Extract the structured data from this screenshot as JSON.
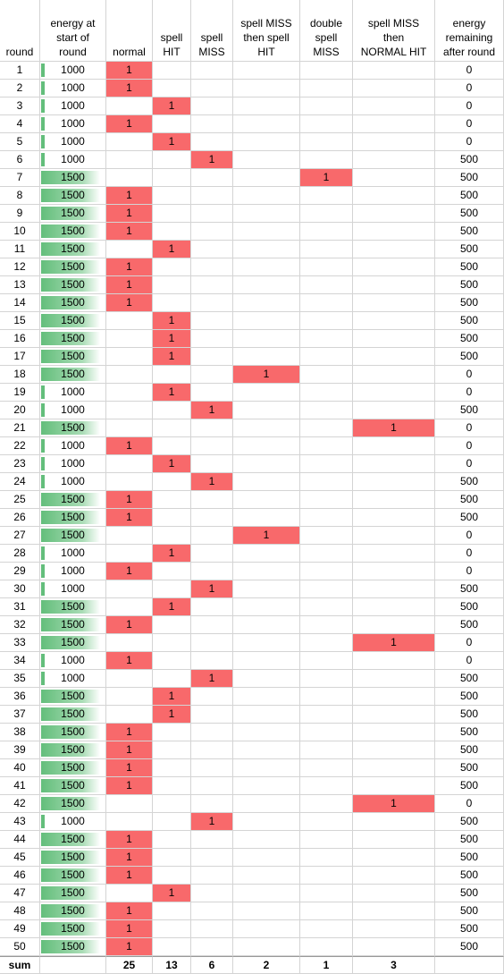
{
  "headers": [
    [
      "round"
    ],
    [
      "energy at",
      "start of",
      "round"
    ],
    [
      "normal"
    ],
    [
      "spell",
      "HIT"
    ],
    [
      "spell",
      "MISS"
    ],
    [
      "spell MISS",
      "then spell",
      "HIT"
    ],
    [
      "double",
      "spell",
      "MISS"
    ],
    [
      "spell MISS",
      "then",
      "NORMAL HIT"
    ],
    [
      "energy",
      "remaining",
      "after round"
    ]
  ],
  "rows": [
    {
      "round": "1",
      "energy": "1000",
      "type": "normal",
      "remaining": "0"
    },
    {
      "round": "2",
      "energy": "1000",
      "type": "normal",
      "remaining": "0"
    },
    {
      "round": "3",
      "energy": "1000",
      "type": "spell_hit",
      "remaining": "0"
    },
    {
      "round": "4",
      "energy": "1000",
      "type": "normal",
      "remaining": "0"
    },
    {
      "round": "5",
      "energy": "1000",
      "type": "spell_hit",
      "remaining": "0"
    },
    {
      "round": "6",
      "energy": "1000",
      "type": "spell_miss",
      "remaining": "500"
    },
    {
      "round": "7",
      "energy": "1500",
      "type": "double_miss",
      "remaining": "500"
    },
    {
      "round": "8",
      "energy": "1500",
      "type": "normal",
      "remaining": "500"
    },
    {
      "round": "9",
      "energy": "1500",
      "type": "normal",
      "remaining": "500"
    },
    {
      "round": "10",
      "energy": "1500",
      "type": "normal",
      "remaining": "500"
    },
    {
      "round": "11",
      "energy": "1500",
      "type": "spell_hit",
      "remaining": "500"
    },
    {
      "round": "12",
      "energy": "1500",
      "type": "normal",
      "remaining": "500"
    },
    {
      "round": "13",
      "energy": "1500",
      "type": "normal",
      "remaining": "500"
    },
    {
      "round": "14",
      "energy": "1500",
      "type": "normal",
      "remaining": "500"
    },
    {
      "round": "15",
      "energy": "1500",
      "type": "spell_hit",
      "remaining": "500"
    },
    {
      "round": "16",
      "energy": "1500",
      "type": "spell_hit",
      "remaining": "500"
    },
    {
      "round": "17",
      "energy": "1500",
      "type": "spell_hit",
      "remaining": "500"
    },
    {
      "round": "18",
      "energy": "1500",
      "type": "miss_then_hit",
      "remaining": "0"
    },
    {
      "round": "19",
      "energy": "1000",
      "type": "spell_hit",
      "remaining": "0"
    },
    {
      "round": "20",
      "energy": "1000",
      "type": "spell_miss",
      "remaining": "500"
    },
    {
      "round": "21",
      "energy": "1500",
      "type": "miss_then_normal",
      "remaining": "0"
    },
    {
      "round": "22",
      "energy": "1000",
      "type": "normal",
      "remaining": "0"
    },
    {
      "round": "23",
      "energy": "1000",
      "type": "spell_hit",
      "remaining": "0"
    },
    {
      "round": "24",
      "energy": "1000",
      "type": "spell_miss",
      "remaining": "500"
    },
    {
      "round": "25",
      "energy": "1500",
      "type": "normal",
      "remaining": "500"
    },
    {
      "round": "26",
      "energy": "1500",
      "type": "normal",
      "remaining": "500"
    },
    {
      "round": "27",
      "energy": "1500",
      "type": "miss_then_hit",
      "remaining": "0"
    },
    {
      "round": "28",
      "energy": "1000",
      "type": "spell_hit",
      "remaining": "0"
    },
    {
      "round": "29",
      "energy": "1000",
      "type": "normal",
      "remaining": "0"
    },
    {
      "round": "30",
      "energy": "1000",
      "type": "spell_miss",
      "remaining": "500"
    },
    {
      "round": "31",
      "energy": "1500",
      "type": "spell_hit",
      "remaining": "500"
    },
    {
      "round": "32",
      "energy": "1500",
      "type": "normal",
      "remaining": "500"
    },
    {
      "round": "33",
      "energy": "1500",
      "type": "miss_then_normal",
      "remaining": "0"
    },
    {
      "round": "34",
      "energy": "1000",
      "type": "normal",
      "remaining": "0"
    },
    {
      "round": "35",
      "energy": "1000",
      "type": "spell_miss",
      "remaining": "500"
    },
    {
      "round": "36",
      "energy": "1500",
      "type": "spell_hit",
      "remaining": "500"
    },
    {
      "round": "37",
      "energy": "1500",
      "type": "spell_hit",
      "remaining": "500"
    },
    {
      "round": "38",
      "energy": "1500",
      "type": "normal",
      "remaining": "500"
    },
    {
      "round": "39",
      "energy": "1500",
      "type": "normal",
      "remaining": "500"
    },
    {
      "round": "40",
      "energy": "1500",
      "type": "normal",
      "remaining": "500"
    },
    {
      "round": "41",
      "energy": "1500",
      "type": "normal",
      "remaining": "500"
    },
    {
      "round": "42",
      "energy": "1500",
      "type": "miss_then_normal",
      "remaining": "0"
    },
    {
      "round": "43",
      "energy": "1000",
      "type": "spell_miss",
      "remaining": "500"
    },
    {
      "round": "44",
      "energy": "1500",
      "type": "normal",
      "remaining": "500"
    },
    {
      "round": "45",
      "energy": "1500",
      "type": "normal",
      "remaining": "500"
    },
    {
      "round": "46",
      "energy": "1500",
      "type": "normal",
      "remaining": "500"
    },
    {
      "round": "47",
      "energy": "1500",
      "type": "spell_hit",
      "remaining": "500"
    },
    {
      "round": "48",
      "energy": "1500",
      "type": "normal",
      "remaining": "500"
    },
    {
      "round": "49",
      "energy": "1500",
      "type": "normal",
      "remaining": "500"
    },
    {
      "round": "50",
      "energy": "1500",
      "type": "normal",
      "remaining": "500"
    }
  ],
  "marker": "1",
  "sum": {
    "label": "sum",
    "normal": "25",
    "spell_hit": "13",
    "spell_miss": "6",
    "miss_then_hit": "2",
    "double_miss": "1",
    "miss_then_normal": "3"
  },
  "colors": {
    "highlight": "#f8696b",
    "databar": "#63be7b",
    "gridline": "#d4d4d4"
  }
}
